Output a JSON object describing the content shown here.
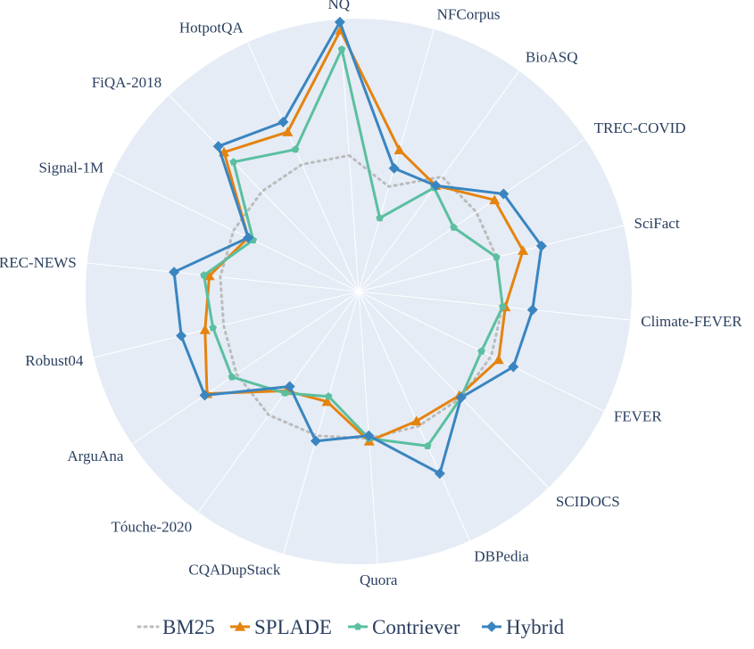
{
  "chart_data": {
    "type": "radar",
    "title": "",
    "categories": [
      "NQ",
      "NFCorpus",
      "BioASQ",
      "TREC-COVID",
      "SciFact",
      "Climate-FEVER",
      "FEVER",
      "SCIDOCS",
      "DBPedia",
      "Quora",
      "CQADupStack",
      "Tóuche-2020",
      "ArguAna",
      "Robust04",
      "TREC-NEWS",
      "Signal-1M",
      "FiQA-2018",
      "HotpotQA"
    ],
    "radial_range": [
      0,
      1
    ],
    "grid": true,
    "legend_position": "bottom",
    "series": [
      {
        "name": "BM25",
        "color": "#bbbbbb",
        "dash": "dot",
        "marker": "none",
        "values": [
          0.5,
          0.4,
          0.52,
          0.52,
          0.52,
          0.53,
          0.54,
          0.54,
          0.54,
          0.54,
          0.55,
          0.56,
          0.54,
          0.51,
          0.51,
          0.51,
          0.51,
          0.51
        ]
      },
      {
        "name": "SPLADE",
        "color": "#e5830f",
        "dash": "solid",
        "marker": "triangle-up",
        "values": [
          0.96,
          0.54,
          0.48,
          0.6,
          0.62,
          0.54,
          0.57,
          0.53,
          0.52,
          0.55,
          0.42,
          0.45,
          0.67,
          0.58,
          0.55,
          0.45,
          0.71,
          0.64
        ]
      },
      {
        "name": "Contriever",
        "color": "#5bbfa0",
        "dash": "solid",
        "marker": "pentagon",
        "values": [
          0.89,
          0.28,
          0.47,
          0.42,
          0.52,
          0.53,
          0.5,
          0.54,
          0.62,
          0.54,
          0.4,
          0.46,
          0.56,
          0.55,
          0.57,
          0.43,
          0.66,
          0.57
        ]
      },
      {
        "name": "Hybrid",
        "color": "#3a85c0",
        "dash": "solid",
        "marker": "diamond",
        "values": [
          0.99,
          0.47,
          0.48,
          0.64,
          0.69,
          0.64,
          0.63,
          0.54,
          0.73,
          0.53,
          0.57,
          0.43,
          0.68,
          0.67,
          0.68,
          0.45,
          0.74,
          0.68
        ]
      }
    ]
  }
}
